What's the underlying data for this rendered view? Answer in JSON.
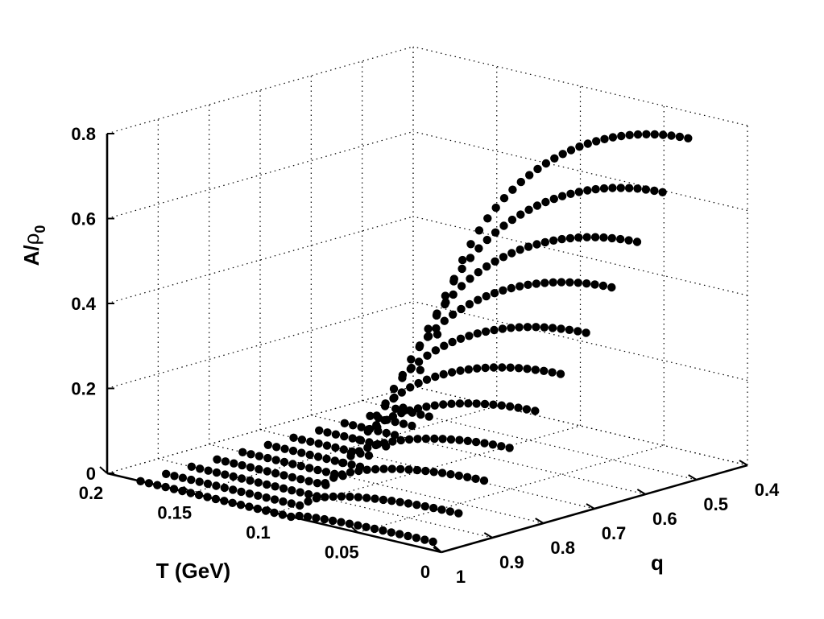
{
  "chart_data": {
    "type": "scatter3d",
    "xlabel": "T (GeV)",
    "ylabel": "q",
    "zlabel_main": "A/",
    "zlabel_rho": "ρ",
    "zlabel_sub": "0",
    "xlim": [
      0,
      0.2
    ],
    "ylim": [
      0.4,
      1
    ],
    "zlim": [
      0,
      0.8
    ],
    "x_ticks": [
      {
        "v": 0,
        "label": "0"
      },
      {
        "v": 0.05,
        "label": "0.05"
      },
      {
        "v": 0.1,
        "label": "0.1"
      },
      {
        "v": 0.15,
        "label": "0.15"
      },
      {
        "v": 0.2,
        "label": "0.2"
      }
    ],
    "y_ticks": [
      {
        "v": 1,
        "label": "1"
      },
      {
        "v": 0.9,
        "label": "0.9"
      },
      {
        "v": 0.8,
        "label": "0.8"
      },
      {
        "v": 0.7,
        "label": "0.7"
      },
      {
        "v": 0.6,
        "label": "0.6"
      },
      {
        "v": 0.5,
        "label": "0.5"
      },
      {
        "v": 0.4,
        "label": "0.4"
      }
    ],
    "z_ticks": [
      {
        "v": 0,
        "label": "0"
      },
      {
        "v": 0.2,
        "label": "0.2"
      },
      {
        "v": 0.4,
        "label": "0.4"
      },
      {
        "v": 0.6,
        "label": "0.6"
      },
      {
        "v": 0.8,
        "label": "0.8"
      }
    ],
    "grid": true,
    "marker": "filled-circle",
    "marker_color": "#000000",
    "T_samples": [
      0.005,
      0.01,
      0.015,
      0.02,
      0.025,
      0.03,
      0.035,
      0.04,
      0.045,
      0.05,
      0.055,
      0.06,
      0.065,
      0.07,
      0.075,
      0.08,
      0.085,
      0.09,
      0.095,
      0.1,
      0.105,
      0.11,
      0.115,
      0.12,
      0.125,
      0.13,
      0.135,
      0.14,
      0.145,
      0.15,
      0.155,
      0.16,
      0.165,
      0.17,
      0.175,
      0.18
    ],
    "series": [
      {
        "q": 1.0,
        "A0": 0.02,
        "Tc": 0.09
      },
      {
        "q": 0.95,
        "A0": 0.07,
        "Tc": 0.097
      },
      {
        "q": 0.9,
        "A0": 0.13,
        "Tc": 0.104
      },
      {
        "q": 0.85,
        "A0": 0.19,
        "Tc": 0.111
      },
      {
        "q": 0.8,
        "A0": 0.26,
        "Tc": 0.118
      },
      {
        "q": 0.75,
        "A0": 0.33,
        "Tc": 0.125
      },
      {
        "q": 0.7,
        "A0": 0.41,
        "Tc": 0.132
      },
      {
        "q": 0.65,
        "A0": 0.5,
        "Tc": 0.139
      },
      {
        "q": 0.6,
        "A0": 0.59,
        "Tc": 0.146
      },
      {
        "q": 0.55,
        "A0": 0.69,
        "Tc": 0.153
      },
      {
        "q": 0.5,
        "A0": 0.8,
        "Tc": 0.16
      }
    ]
  }
}
